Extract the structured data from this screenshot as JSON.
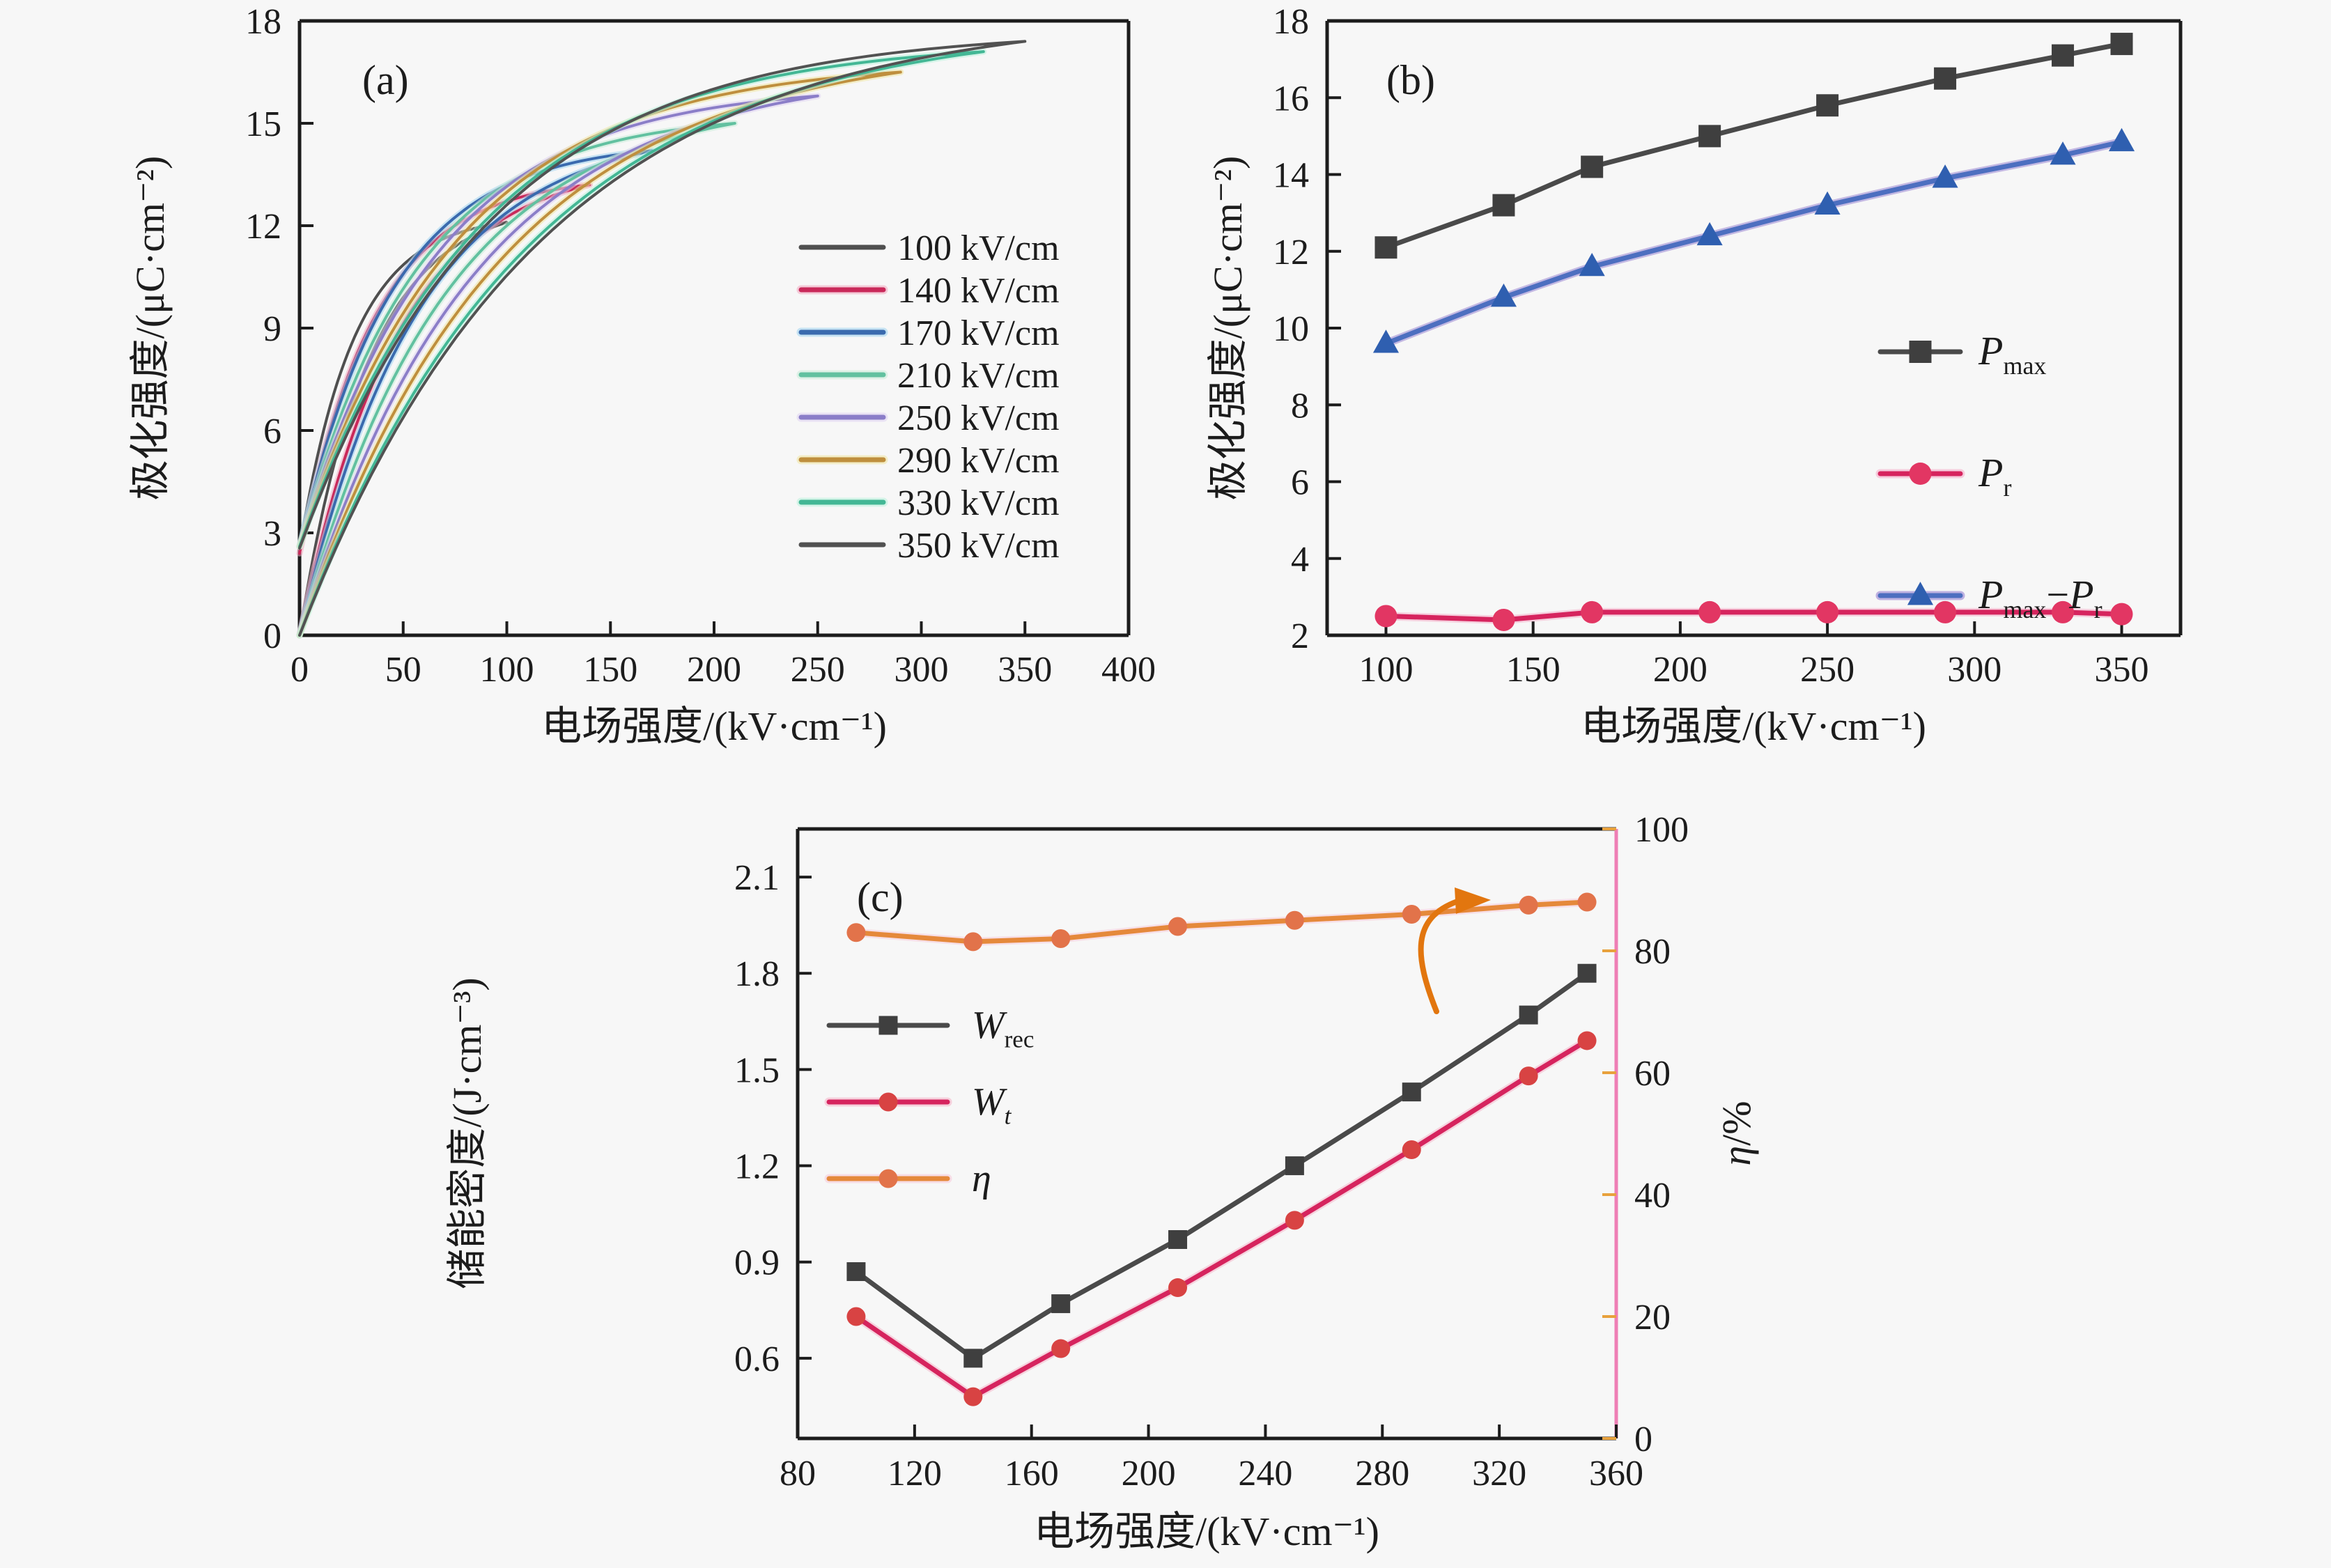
{
  "figure": {
    "background": "#f7f7f7",
    "axis_color": "#1c1c1c",
    "panel_letters": [
      "(a)",
      "(b)",
      "(c)"
    ]
  },
  "chart_data": [
    {
      "id": "a",
      "panel_label": "(a)",
      "type": "line",
      "subtype": "unipolar-P-E-hysteresis-loops",
      "xlabel": "电场强度/(kV·cm⁻¹)",
      "ylabel": "极化强度/(μC·cm⁻²)",
      "xlim": [
        0,
        400
      ],
      "ylim": [
        0,
        18
      ],
      "xticks": [
        0,
        50,
        100,
        150,
        200,
        250,
        300,
        350,
        400
      ],
      "xtick_labels": [
        "0",
        "50",
        "100",
        "150",
        "200",
        "250",
        "300",
        "350",
        "400"
      ],
      "yticks": [
        0,
        3,
        6,
        9,
        12,
        15,
        18
      ],
      "ytick_labels": [
        "0",
        "3",
        "6",
        "9",
        "12",
        "15",
        "18"
      ],
      "grid": false,
      "legend_position": "inside-right",
      "series": [
        {
          "name": "100 kV/cm",
          "color": "#4f4f4f",
          "halo": null,
          "Emax": 100,
          "Pmax": 12.1,
          "Pr": 2.5
        },
        {
          "name": "140 kV/cm",
          "color": "#c9295a",
          "halo": "#f3a8bf",
          "Emax": 140,
          "Pmax": 13.2,
          "Pr": 2.4
        },
        {
          "name": "170 kV/cm",
          "color": "#3a6aae",
          "halo": "#9fd4f0",
          "Emax": 170,
          "Pmax": 14.2,
          "Pr": 2.6
        },
        {
          "name": "210 kV/cm",
          "color": "#62c1a0",
          "halo": "#c9ecd9",
          "Emax": 210,
          "Pmax": 15.0,
          "Pr": 2.6
        },
        {
          "name": "250 kV/cm",
          "color": "#8b7ec8",
          "halo": "#ded2f2",
          "Emax": 250,
          "Pmax": 15.8,
          "Pr": 2.6
        },
        {
          "name": "290 kV/cm",
          "color": "#bf8f3e",
          "halo": "#f0e6a0",
          "Emax": 290,
          "Pmax": 16.5,
          "Pr": 2.6
        },
        {
          "name": "330 kV/cm",
          "color": "#43b795",
          "halo": "#b9f2dc",
          "Emax": 330,
          "Pmax": 17.1,
          "Pr": 2.6
        },
        {
          "name": "350 kV/cm",
          "color": "#525252",
          "halo": null,
          "Emax": 350,
          "Pmax": 17.4,
          "Pr": 2.55
        }
      ]
    },
    {
      "id": "b",
      "panel_label": "(b)",
      "type": "line",
      "xlabel": "电场强度/(kV·cm⁻¹)",
      "ylabel": "极化强度/(μC·cm⁻²)",
      "xlim": [
        80,
        370
      ],
      "ylim": [
        2,
        18
      ],
      "xticks": [
        100,
        150,
        200,
        250,
        300,
        350
      ],
      "xtick_labels": [
        "100",
        "150",
        "200",
        "250",
        "300",
        "350"
      ],
      "yticks": [
        2,
        4,
        6,
        8,
        10,
        12,
        14,
        16,
        18
      ],
      "ytick_labels": [
        "2",
        "4",
        "6",
        "8",
        "10",
        "12",
        "14",
        "16",
        "18"
      ],
      "grid": false,
      "legend_position": "inside-right",
      "x": [
        100,
        140,
        170,
        210,
        250,
        290,
        330,
        350
      ],
      "series": [
        {
          "label_parts": [
            {
              "t": "P",
              "italic": true
            },
            {
              "t": "max",
              "sub": true
            }
          ],
          "marker": "square",
          "color": "#4a4a4a",
          "marker_color": "#3f3f3f",
          "halo": null,
          "values": [
            12.1,
            13.2,
            14.2,
            15.0,
            15.8,
            16.5,
            17.1,
            17.4
          ]
        },
        {
          "label_parts": [
            {
              "t": "P",
              "italic": true
            },
            {
              "t": "r",
              "sub": true
            }
          ],
          "marker": "circle",
          "color": "#d6245e",
          "marker_color": "#e23663",
          "halo": "#f6aac6",
          "values": [
            2.5,
            2.4,
            2.6,
            2.6,
            2.6,
            2.6,
            2.6,
            2.55
          ]
        },
        {
          "label_parts": [
            {
              "t": "P",
              "italic": true
            },
            {
              "t": "max",
              "sub": true
            },
            {
              "t": "−"
            },
            {
              "t": "P",
              "italic": true
            },
            {
              "t": "r",
              "sub": true
            }
          ],
          "marker": "triangle",
          "color": "#4d6fc0",
          "marker_color": "#2f5fb0",
          "halo": "#8f79cf",
          "values": [
            9.6,
            10.8,
            11.6,
            12.4,
            13.2,
            13.9,
            14.5,
            14.85
          ]
        }
      ]
    },
    {
      "id": "c",
      "panel_label": "(c)",
      "type": "line",
      "xlabel": "电场强度/(kV·cm⁻¹)",
      "ylabel": "储能密度/(J·cm⁻³)",
      "xlim": [
        80,
        360
      ],
      "ylim": [
        0.35,
        2.25
      ],
      "xticks": [
        80,
        120,
        160,
        200,
        240,
        280,
        320,
        360
      ],
      "xtick_labels": [
        "80",
        "120",
        "160",
        "200",
        "240",
        "280",
        "320",
        "360"
      ],
      "yticks": [
        0.6,
        0.9,
        1.2,
        1.5,
        1.8,
        2.1
      ],
      "ytick_labels": [
        "0.6",
        "0.9",
        "1.2",
        "1.5",
        "1.8",
        "2.1"
      ],
      "grid": false,
      "legend_position": "inside-left-middle",
      "right_axis": {
        "label": "η/%",
        "label_parts": [
          {
            "t": "η",
            "italic": true
          },
          {
            "t": "/%"
          }
        ],
        "lim": [
          0,
          100
        ],
        "ticks": [
          0,
          20,
          40,
          60,
          80,
          100
        ],
        "tick_labels": [
          "0",
          "20",
          "40",
          "60",
          "80",
          "100"
        ],
        "spine_color": "#ee7fb5",
        "tick_color": "#e8a13c",
        "tick_label_color": "#d58736",
        "label_color": "#de7f2a"
      },
      "x": [
        100,
        140,
        170,
        210,
        250,
        290,
        330,
        350
      ],
      "series": [
        {
          "label_parts": [
            {
              "t": "W",
              "italic": true
            },
            {
              "t": "rec",
              "sub": true
            }
          ],
          "marker": "square",
          "color": "#4a4a4a",
          "marker_color": "#3f3f3f",
          "halo": null,
          "axis": "left",
          "values": [
            0.87,
            0.6,
            0.77,
            0.97,
            1.2,
            1.43,
            1.67,
            1.8
          ]
        },
        {
          "label_parts": [
            {
              "t": "W",
              "italic": true
            },
            {
              "t": "t",
              "sub": true,
              "italic": true
            }
          ],
          "marker": "circle",
          "color": "#d6245e",
          "marker_color": "#d84343",
          "halo": "#f5b0c6",
          "axis": "left",
          "values": [
            0.73,
            0.48,
            0.63,
            0.82,
            1.03,
            1.25,
            1.48,
            1.59
          ]
        },
        {
          "label_parts": [
            {
              "t": "η",
              "italic": true
            }
          ],
          "marker": "circle",
          "color": "#e5893b",
          "marker_color": "#e2734a",
          "halo": "#f8c8d8",
          "axis": "right",
          "values": [
            83,
            81.5,
            82,
            84,
            85,
            86,
            87.5,
            88
          ]
        }
      ],
      "annotation": {
        "type": "curved-arrow",
        "color": "#e2760f",
        "meaning": "eta-reads-right-axis"
      }
    }
  ]
}
